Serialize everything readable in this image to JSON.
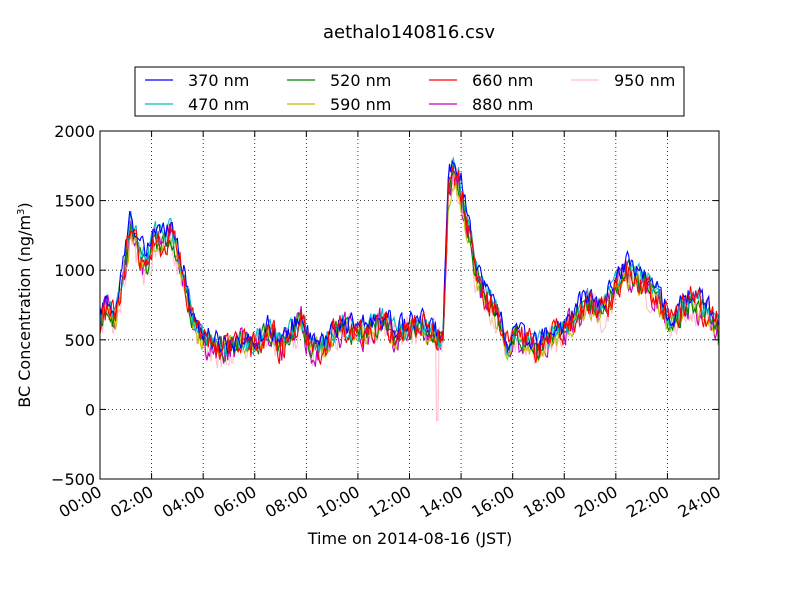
{
  "chart_data": {
    "type": "line",
    "title": "aethalo140816.csv",
    "xlabel": "Time on 2014-08-16 (JST)",
    "ylabel_main": "BC Concentration (ng/m",
    "ylabel_sup": "3",
    "ylabel_tail": ")",
    "x_unit": "hours",
    "xlim": [
      0,
      24
    ],
    "ylim": [
      -500,
      2000
    ],
    "x_tick_values": [
      0,
      2,
      4,
      6,
      8,
      10,
      12,
      14,
      16,
      18,
      20,
      22,
      24
    ],
    "x_tick_labels": [
      "00:00",
      "02:00",
      "04:00",
      "06:00",
      "08:00",
      "10:00",
      "12:00",
      "14:00",
      "16:00",
      "18:00",
      "20:00",
      "22:00",
      "24:00"
    ],
    "y_tick_values": [
      -500,
      0,
      500,
      1000,
      1500,
      2000
    ],
    "y_tick_labels": [
      "−500",
      "0",
      "500",
      "1000",
      "1500",
      "2000"
    ],
    "grid": true,
    "legend_position": "top",
    "series": [
      {
        "name": "370 nm",
        "color": "#0000ff"
      },
      {
        "name": "470 nm",
        "color": "#00bfbf"
      },
      {
        "name": "520 nm",
        "color": "#008000"
      },
      {
        "name": "590 nm",
        "color": "#bfbf00"
      },
      {
        "name": "660 nm",
        "color": "#ff0000"
      },
      {
        "name": "880 nm",
        "color": "#bf00bf"
      },
      {
        "name": "950 nm",
        "color": "#ffc0cb"
      }
    ],
    "base_profile": {
      "x": [
        0,
        0.3,
        0.6,
        0.9,
        1.2,
        1.5,
        1.8,
        2.1,
        2.4,
        2.7,
        3.0,
        3.3,
        3.6,
        3.9,
        4.2,
        4.6,
        5.0,
        5.4,
        5.8,
        6.2,
        6.6,
        7.0,
        7.4,
        7.8,
        8.2,
        8.6,
        9.0,
        9.5,
        10.0,
        10.5,
        11.0,
        11.5,
        12.0,
        12.5,
        13.0,
        13.3,
        13.5,
        13.7,
        13.9,
        14.1,
        14.3,
        14.6,
        14.9,
        15.2,
        15.5,
        15.8,
        16.1,
        16.5,
        16.9,
        17.3,
        17.7,
        18.1,
        18.5,
        18.9,
        19.3,
        19.7,
        20.0,
        20.3,
        20.6,
        20.9,
        21.2,
        21.5,
        21.8,
        22.1,
        22.4,
        22.7,
        23.0,
        23.3,
        23.6,
        23.9,
        24.0
      ],
      "y": [
        650,
        750,
        650,
        1000,
        1350,
        1150,
        1050,
        1250,
        1200,
        1300,
        1150,
        900,
        650,
        550,
        500,
        450,
        450,
        500,
        450,
        500,
        600,
        450,
        550,
        650,
        450,
        450,
        550,
        600,
        550,
        600,
        650,
        550,
        600,
        600,
        550,
        500,
        1600,
        1750,
        1650,
        1500,
        1300,
        1000,
        850,
        750,
        650,
        450,
        550,
        500,
        450,
        500,
        550,
        600,
        700,
        800,
        700,
        800,
        900,
        1000,
        1000,
        950,
        900,
        850,
        750,
        600,
        700,
        750,
        800,
        750,
        700,
        650,
        550
      ]
    }
  }
}
